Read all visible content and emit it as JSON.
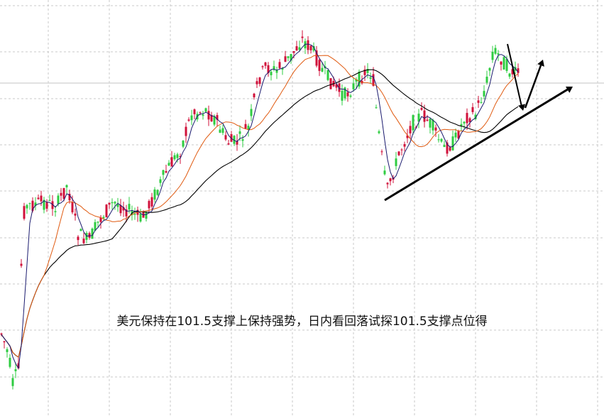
{
  "annotation": "美元保持在101.5支撑上保持强势，日内看回落试探101.5支撑点位得",
  "colors": {
    "background": "#ffffff",
    "grid": "#c8c8c8",
    "support_level": "#cfcfcf",
    "bull_candle": "#2ecc40",
    "bear_candle": "#d0103a",
    "ma_short": "#1a1a6e",
    "ma_mid": "#e05a10",
    "ma_long": "#000000",
    "trend_arrow": "#000000"
  },
  "chart_data": {
    "type": "candlestick",
    "title": "",
    "xlabel": "",
    "ylabel": "",
    "grid": true,
    "candles_close_path": [
      10,
      40,
      38,
      42,
      60,
      80,
      160,
      260,
      300,
      280,
      270,
      300,
      310,
      300,
      290,
      300,
      330,
      320,
      300,
      290,
      280,
      300,
      310,
      330,
      360,
      380,
      400,
      420,
      440,
      460,
      480,
      470,
      450,
      440,
      430,
      440,
      450,
      470,
      500,
      520,
      540,
      560,
      555,
      545,
      535,
      540,
      550,
      560,
      570,
      580,
      560,
      540,
      520,
      500,
      490,
      480,
      470,
      475,
      485,
      490,
      495,
      500,
      350,
      320,
      280,
      310,
      340,
      370,
      380,
      390,
      400,
      405,
      410,
      420,
      440,
      460,
      480,
      500,
      520,
      540,
      550,
      530
    ],
    "moving_averages": [
      "ma_short",
      "ma_mid",
      "ma_long"
    ],
    "support_annotation_level": 101.5,
    "annotations": [
      "trendline support",
      "projected pullback then rise"
    ]
  }
}
